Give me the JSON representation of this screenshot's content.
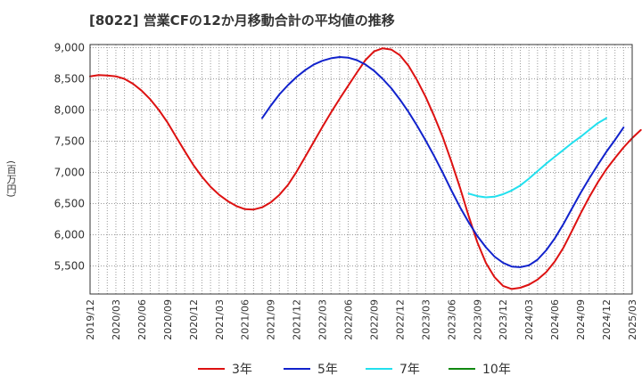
{
  "chart_data": {
    "type": "line",
    "title": "[8022]  営業CFの12か月移動合計の平均値の推移",
    "xlabel": "",
    "ylabel": "(百万円)",
    "ylim": [
      5050,
      9050
    ],
    "yticks": [
      5500,
      6000,
      6500,
      7000,
      7500,
      8000,
      8500,
      9000
    ],
    "ytick_labels": [
      "5,500",
      "6,000",
      "6,500",
      "7,000",
      "7,500",
      "8,000",
      "8,500",
      "9,000"
    ],
    "x_start": "2019-12",
    "x_end": "2025-03",
    "xtick_labels": [
      "2019/12",
      "2020/03",
      "2020/06",
      "2020/09",
      "2020/12",
      "2021/03",
      "2021/06",
      "2021/09",
      "2021/12",
      "2022/03",
      "2022/06",
      "2022/09",
      "2022/12",
      "2023/03",
      "2023/06",
      "2023/09",
      "2023/12",
      "2024/03",
      "2024/06",
      "2024/09",
      "2024/12",
      "2025/03"
    ],
    "grid": true,
    "legend_position": "bottom",
    "series": [
      {
        "name": "3年",
        "color": "#dd1111",
        "start": "2019-12",
        "values": [
          8540,
          8560,
          8555,
          8540,
          8500,
          8420,
          8310,
          8170,
          8000,
          7800,
          7570,
          7340,
          7120,
          6930,
          6770,
          6640,
          6540,
          6460,
          6410,
          6405,
          6440,
          6520,
          6640,
          6800,
          7010,
          7250,
          7490,
          7730,
          7960,
          8180,
          8390,
          8600,
          8800,
          8940,
          8990,
          8970,
          8880,
          8710,
          8480,
          8210,
          7900,
          7560,
          7170,
          6750,
          6300,
          5880,
          5550,
          5320,
          5180,
          5130,
          5150,
          5200,
          5280,
          5400,
          5570,
          5790,
          6060,
          6340,
          6600,
          6840,
          7050,
          7230,
          7400,
          7550,
          7680
        ]
      },
      {
        "name": "5年",
        "color": "#1122cc",
        "start": "2021-08",
        "values": [
          7870,
          8070,
          8250,
          8400,
          8530,
          8640,
          8730,
          8790,
          8830,
          8850,
          8840,
          8800,
          8730,
          8630,
          8500,
          8350,
          8170,
          7970,
          7750,
          7510,
          7260,
          6990,
          6710,
          6440,
          6200,
          5980,
          5800,
          5650,
          5550,
          5490,
          5480,
          5510,
          5600,
          5750,
          5940,
          6170,
          6420,
          6670,
          6900,
          7120,
          7330,
          7520,
          7720
        ]
      },
      {
        "name": "7年",
        "color": "#22e0ee",
        "start": "2023-08",
        "values": [
          6660,
          6620,
          6600,
          6610,
          6650,
          6710,
          6790,
          6900,
          7020,
          7140,
          7250,
          7360,
          7470,
          7570,
          7680,
          7790,
          7870
        ]
      },
      {
        "name": "10年",
        "color": "#118811",
        "start": "2024-03",
        "values": []
      }
    ]
  }
}
